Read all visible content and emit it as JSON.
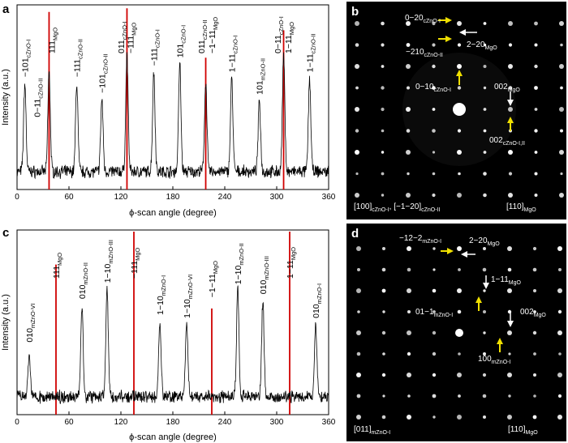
{
  "panels": {
    "a": {
      "letter": "a",
      "ylabel": "Intensity (a.u.)",
      "xlabel": "ϕ-scan angle (degree)",
      "xticks": [
        "0",
        "60",
        "120",
        "180",
        "240",
        "300",
        "360"
      ],
      "peaks_x": [
        9,
        37,
        69,
        98,
        127,
        158,
        188,
        218,
        248,
        280,
        308,
        338
      ],
      "peaks_h": [
        0.55,
        0.62,
        0.55,
        0.45,
        0.72,
        0.62,
        0.67,
        0.56,
        0.58,
        0.44,
        0.72,
        0.58
      ],
      "red_lines": [
        {
          "x": 37,
          "h": 0.97
        },
        {
          "x": 127,
          "h": 0.99
        },
        {
          "x": 218,
          "h": 0.72
        },
        {
          "x": 308,
          "h": 0.87
        }
      ],
      "labels": [
        {
          "x": 9,
          "base": "−101",
          "sub": "cZnO-I"
        },
        {
          "x": 23,
          "base": "0−11",
          "sub": "cZnO-II"
        },
        {
          "x": 40,
          "base": "111",
          "sub": "MgO"
        },
        {
          "x": 69,
          "base": "−111",
          "sub": "cZnO-II"
        },
        {
          "x": 98,
          "base": "−101",
          "sub": "cZnO-II"
        },
        {
          "x": 120,
          "base": "011",
          "sub": "cZnO-I"
        },
        {
          "x": 131,
          "base": "−111",
          "sub": "MgO"
        },
        {
          "x": 158,
          "base": "−111",
          "sub": "cZnO-I"
        },
        {
          "x": 188,
          "base": "101",
          "sub": "cZnO-I"
        },
        {
          "x": 213,
          "base": "011",
          "sub": "cZnO-II"
        },
        {
          "x": 225,
          "base": "−1−11",
          "sub": "MgO"
        },
        {
          "x": 248,
          "base": "1−11",
          "sub": "cZnO-I"
        },
        {
          "x": 280,
          "base": "101",
          "sub": "mZnO-II"
        },
        {
          "x": 301,
          "base": "0−11",
          "sub": "cZnO-I"
        },
        {
          "x": 313,
          "base": "1−11",
          "sub": "MgO"
        },
        {
          "x": 338,
          "base": "1−11",
          "sub": "cZnO-II"
        }
      ]
    },
    "b": {
      "letter": "b",
      "labels": [
        {
          "base": "0−20",
          "sub": "cZnO-I"
        },
        {
          "base": "2−20",
          "sub": "MgO"
        },
        {
          "base": "−210",
          "sub": "cZnO-II"
        },
        {
          "base": "0−10",
          "sub": "cZnO-I"
        },
        {
          "base": "002",
          "sub": "MgO"
        },
        {
          "base": "002",
          "sub": "cZnO-I,II"
        }
      ],
      "zone_left": [
        {
          "base": "[100]",
          "sub": "cZnO-I"
        },
        {
          "base": ", [−1−20]",
          "sub": "cZnO-II"
        }
      ],
      "zone_right": {
        "base": "[110]",
        "sub": "MgO"
      }
    },
    "c": {
      "letter": "c",
      "ylabel": "Intensity (a.u.)",
      "xlabel": "ϕ-scan angle (degree)",
      "xticks": [
        "0",
        "60",
        "120",
        "180",
        "240",
        "300",
        "360"
      ],
      "peaks_x": [
        14,
        75,
        104,
        165,
        196,
        255,
        284,
        345
      ],
      "peaks_h": [
        0.25,
        0.57,
        0.67,
        0.47,
        0.45,
        0.66,
        0.6,
        0.45
      ],
      "red_lines": [
        {
          "x": 45,
          "h": 0.82
        },
        {
          "x": 135,
          "h": 1.0
        },
        {
          "x": 225,
          "h": 0.58
        },
        {
          "x": 315,
          "h": 1.0
        }
      ],
      "labels": [
        {
          "x": 14,
          "base": "010",
          "sub": "mZnO-VI"
        },
        {
          "x": 45,
          "base": "111",
          "sub": "MgO"
        },
        {
          "x": 75,
          "base": "010",
          "sub": "mZnO-II"
        },
        {
          "x": 104,
          "base": "1−10",
          "sub": "mZnO-III"
        },
        {
          "x": 135,
          "base": "−111",
          "sub": "MgO"
        },
        {
          "x": 165,
          "base": "1−10",
          "sub": "mZnO-I"
        },
        {
          "x": 196,
          "base": "1−10",
          "sub": "mZnO-VI"
        },
        {
          "x": 225,
          "base": "−1−11",
          "sub": "MgO"
        },
        {
          "x": 255,
          "base": "1−10",
          "sub": "mZnO-II"
        },
        {
          "x": 284,
          "base": "010",
          "sub": "mZnO-III"
        },
        {
          "x": 315,
          "base": "1−11",
          "sub": "MgO"
        },
        {
          "x": 345,
          "base": "010",
          "sub": "mZnO-I"
        }
      ]
    },
    "d": {
      "letter": "d",
      "labels": [
        {
          "base": "−12−2",
          "sub": "mZnO-I"
        },
        {
          "base": "2−20",
          "sub": "MgO"
        },
        {
          "base": "1−11",
          "sub": "MgO"
        },
        {
          "base": "01−1",
          "sub": "mZnO-I"
        },
        {
          "base": "002",
          "sub": "MgO"
        },
        {
          "base": "100",
          "sub": "mZnO-I"
        }
      ],
      "zone_left": {
        "base": "[011]",
        "sub": "mZnO-I"
      },
      "zone_right": {
        "base": "[110]",
        "sub": "MgO"
      }
    }
  }
}
